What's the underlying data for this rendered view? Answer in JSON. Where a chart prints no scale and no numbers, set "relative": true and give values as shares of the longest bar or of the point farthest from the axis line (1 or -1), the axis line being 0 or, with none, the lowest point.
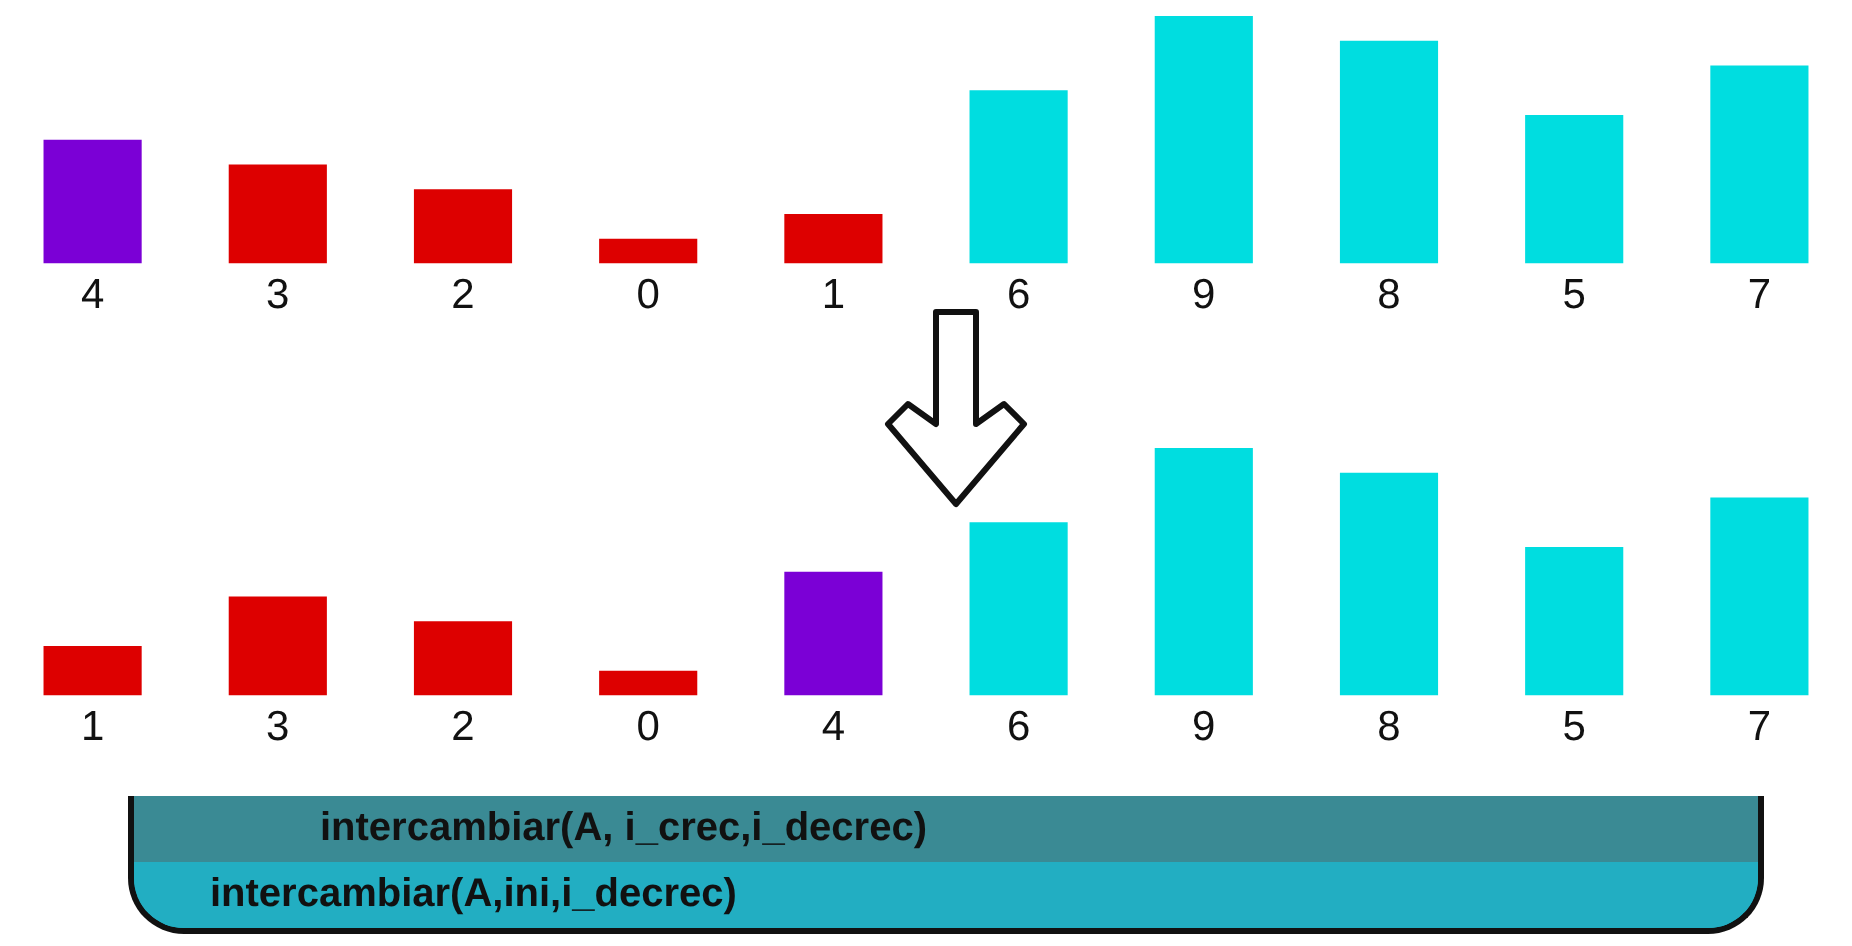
{
  "chart_data": [
    {
      "type": "bar",
      "relative": true,
      "categories": [
        "4",
        "3",
        "2",
        "0",
        "1",
        "6",
        "9",
        "8",
        "5",
        "7"
      ],
      "values": [
        0.5,
        0.4,
        0.3,
        0.1,
        0.2,
        0.7,
        1.0,
        0.9,
        0.6,
        0.8
      ],
      "colors": [
        "#7b00d6",
        "#dd0000",
        "#dd0000",
        "#dd0000",
        "#dd0000",
        "#00dde0",
        "#00dde0",
        "#00dde0",
        "#00dde0",
        "#00dde0"
      ],
      "grid": false,
      "legend": false
    },
    {
      "type": "bar",
      "relative": true,
      "categories": [
        "1",
        "3",
        "2",
        "0",
        "4",
        "6",
        "9",
        "8",
        "5",
        "7"
      ],
      "values": [
        0.2,
        0.4,
        0.3,
        0.1,
        0.5,
        0.7,
        1.0,
        0.9,
        0.6,
        0.8
      ],
      "colors": [
        "#dd0000",
        "#dd0000",
        "#dd0000",
        "#dd0000",
        "#7b00d6",
        "#00dde0",
        "#00dde0",
        "#00dde0",
        "#00dde0",
        "#00dde0"
      ],
      "grid": false,
      "legend": false,
      "annotations": [
        "intercambiar(A, i_crec,i_decrec)",
        "intercambiar(A,ini,i_decrec)"
      ]
    }
  ]
}
